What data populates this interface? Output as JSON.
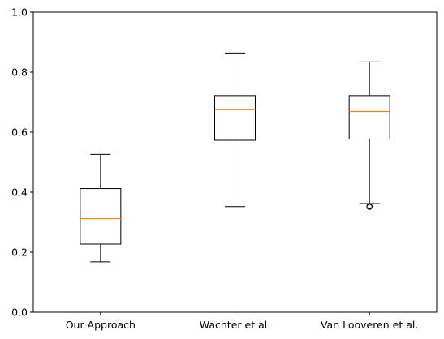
{
  "chart_data": {
    "type": "box",
    "title": "",
    "xlabel": "",
    "ylabel": "",
    "ylim": [
      0,
      1
    ],
    "yticks": [
      0.0,
      0.2,
      0.4,
      0.6,
      0.8,
      1.0
    ],
    "ytick_labels": [
      "0.0",
      "0.2",
      "0.4",
      "0.6",
      "0.8",
      "1.0"
    ],
    "grid": false,
    "colors": {
      "box": "#000000",
      "median": "#ff7f0e",
      "flier": "#000000"
    },
    "categories": [
      "Our Approach",
      "Wachter et al.",
      "Van Looveren et al."
    ],
    "boxes": [
      {
        "name": "Our Approach",
        "whisker_low": 0.168,
        "q1": 0.227,
        "median": 0.312,
        "q3": 0.412,
        "whisker_high": 0.526,
        "outliers": []
      },
      {
        "name": "Wachter et al.",
        "whisker_low": 0.352,
        "q1": 0.573,
        "median": 0.675,
        "q3": 0.722,
        "whisker_high": 0.864,
        "outliers": []
      },
      {
        "name": "Van Looveren et al.",
        "whisker_low": 0.362,
        "q1": 0.577,
        "median": 0.669,
        "q3": 0.722,
        "whisker_high": 0.834,
        "outliers": [
          0.351,
          0.353
        ]
      }
    ]
  }
}
